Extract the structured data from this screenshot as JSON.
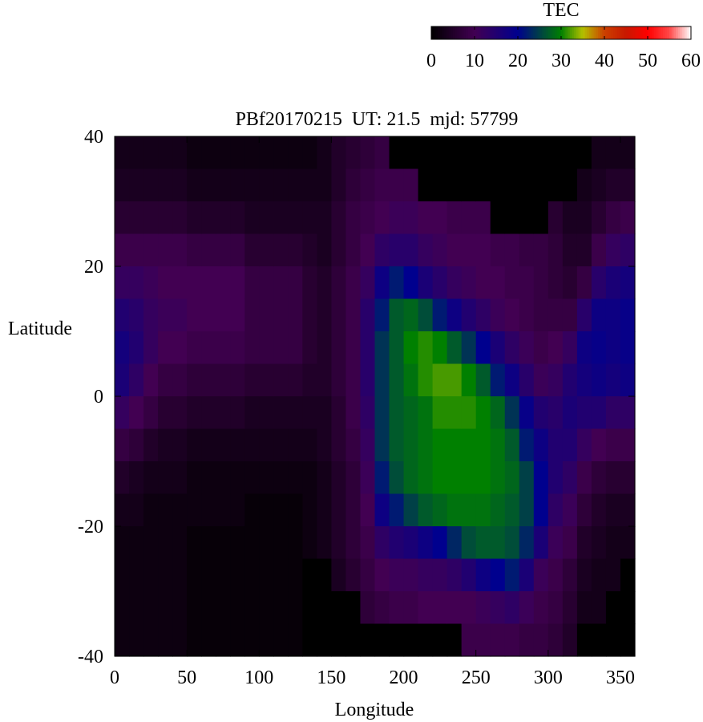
{
  "chart_data": {
    "type": "heatmap",
    "title": "PBf20170215  UT: 21.5  mjd: 57799",
    "xlabel": "Longitude",
    "ylabel": "Latitude",
    "xlim": [
      0,
      360
    ],
    "ylim": [
      -40,
      40
    ],
    "xticks": [
      "0",
      "50",
      "100",
      "150",
      "200",
      "250",
      "300",
      "350"
    ],
    "yticks": [
      "40",
      "20",
      "0",
      "-20",
      "-40"
    ],
    "grid": false,
    "colorbar": {
      "label": "TEC",
      "range": [
        0,
        60
      ],
      "ticks": [
        "0",
        "10",
        "20",
        "30",
        "40",
        "50",
        "60"
      ],
      "placement": "top-right",
      "colors": [
        [
          0,
          "#000000"
        ],
        [
          10,
          "#420052"
        ],
        [
          20,
          "#00008e"
        ],
        [
          30,
          "#008000"
        ],
        [
          35,
          "#b4c000"
        ],
        [
          40,
          "#cc4000"
        ],
        [
          45,
          "#c81800"
        ],
        [
          50,
          "#ff0000"
        ],
        [
          55,
          "#ff4848"
        ],
        [
          60,
          "#ffffff"
        ]
      ]
    },
    "lon_edges_step": 10,
    "lat_centers": [
      37.5,
      32.5,
      27.5,
      22.5,
      17.5,
      12.5,
      7.5,
      2.5,
      -2.5,
      -7.5,
      -12.5,
      -17.5,
      -22.5,
      -27.5,
      -32.5,
      -37.5
    ],
    "lon_centers": [
      5,
      15,
      25,
      35,
      45,
      55,
      65,
      75,
      85,
      95,
      105,
      115,
      125,
      135,
      145,
      155,
      165,
      175,
      185,
      195,
      205,
      215,
      225,
      235,
      245,
      255,
      265,
      275,
      285,
      295,
      305,
      315,
      325,
      335,
      345,
      355
    ],
    "values_by_lon": [
      [
        3,
        4,
        6,
        9,
        12,
        15,
        17,
        16,
        12,
        8,
        5,
        3,
        2,
        2,
        2,
        2
      ],
      [
        3,
        4,
        6,
        9,
        12,
        14,
        15,
        13,
        10,
        7,
        4,
        3,
        2,
        2,
        2,
        2
      ],
      [
        3,
        4,
        6,
        9,
        11,
        12,
        12,
        10,
        8,
        5,
        3,
        2,
        2,
        2,
        2,
        2
      ],
      [
        3,
        4,
        6,
        9,
        10,
        11,
        10,
        8,
        6,
        4,
        3,
        2,
        2,
        2,
        2,
        2
      ],
      [
        3,
        4,
        6,
        9,
        10,
        11,
        10,
        8,
        6,
        4,
        3,
        2,
        2,
        2,
        2,
        2
      ],
      [
        2,
        3,
        5,
        8,
        10,
        10,
        9,
        7,
        5,
        3,
        2,
        2,
        1,
        1,
        1,
        1
      ],
      [
        2,
        3,
        5,
        8,
        10,
        10,
        9,
        7,
        5,
        3,
        2,
        2,
        1,
        1,
        1,
        1
      ],
      [
        2,
        3,
        5,
        8,
        10,
        10,
        9,
        7,
        5,
        3,
        2,
        2,
        1,
        1,
        1,
        1
      ],
      [
        2,
        3,
        5,
        8,
        10,
        10,
        9,
        7,
        5,
        3,
        2,
        2,
        1,
        1,
        1,
        1
      ],
      [
        2,
        3,
        4,
        6,
        8,
        8,
        8,
        6,
        4,
        3,
        2,
        1,
        1,
        1,
        1,
        1
      ],
      [
        2,
        3,
        4,
        6,
        8,
        8,
        8,
        6,
        4,
        3,
        2,
        1,
        1,
        1,
        1,
        1
      ],
      [
        2,
        3,
        4,
        6,
        8,
        8,
        8,
        6,
        4,
        3,
        2,
        1,
        1,
        1,
        1,
        1
      ],
      [
        2,
        3,
        4,
        6,
        8,
        8,
        8,
        6,
        4,
        3,
        2,
        1,
        1,
        1,
        1,
        1
      ],
      [
        2,
        3,
        4,
        5,
        6,
        6,
        6,
        5,
        4,
        3,
        2,
        2,
        2,
        0,
        0,
        0
      ],
      [
        3,
        3,
        4,
        4,
        5,
        5,
        5,
        5,
        4,
        4,
        3,
        3,
        3,
        0,
        0,
        0
      ],
      [
        5,
        5,
        6,
        6,
        7,
        7,
        7,
        7,
        6,
        6,
        5,
        5,
        5,
        4,
        0,
        0
      ],
      [
        6,
        7,
        8,
        8,
        9,
        9,
        9,
        9,
        9,
        8,
        7,
        7,
        7,
        6,
        0,
        0
      ],
      [
        7,
        8,
        9,
        10,
        12,
        14,
        14,
        14,
        13,
        12,
        11,
        10,
        9,
        8,
        7,
        0
      ],
      [
        8,
        9,
        10,
        13,
        18,
        22,
        24,
        24,
        24,
        24,
        22,
        18,
        13,
        10,
        8,
        0
      ],
      [
        0,
        9,
        11,
        14,
        22,
        27,
        27,
        27,
        27,
        27,
        26,
        22,
        15,
        11,
        9,
        0
      ],
      [
        0,
        9,
        11,
        14,
        20,
        28,
        30,
        29,
        28,
        28,
        28,
        25,
        16,
        11,
        9,
        0
      ],
      [
        0,
        0,
        10,
        12,
        16,
        26,
        31,
        31,
        29,
        29,
        29,
        27,
        18,
        12,
        10,
        0
      ],
      [
        0,
        0,
        10,
        11,
        14,
        22,
        30,
        32,
        31,
        30,
        30,
        28,
        20,
        12,
        10,
        0
      ],
      [
        0,
        0,
        9,
        10,
        12,
        18,
        27,
        32,
        31,
        30,
        30,
        29,
        23,
        13,
        10,
        0
      ],
      [
        0,
        0,
        9,
        10,
        11,
        15,
        24,
        30,
        31,
        30,
        30,
        29,
        26,
        15,
        10,
        9
      ],
      [
        0,
        0,
        9,
        10,
        10,
        13,
        20,
        27,
        30,
        30,
        30,
        29,
        27,
        18,
        11,
        9
      ],
      [
        0,
        0,
        0,
        9,
        10,
        11,
        16,
        22,
        28,
        29,
        29,
        28,
        27,
        20,
        12,
        9
      ],
      [
        0,
        0,
        0,
        9,
        9,
        10,
        13,
        18,
        24,
        27,
        28,
        27,
        26,
        22,
        13,
        9
      ],
      [
        0,
        0,
        0,
        8,
        9,
        9,
        11,
        14,
        19,
        22,
        25,
        25,
        23,
        16,
        11,
        8
      ],
      [
        0,
        0,
        0,
        8,
        8,
        8,
        9,
        11,
        15,
        18,
        20,
        20,
        16,
        11,
        9,
        8
      ],
      [
        0,
        0,
        6,
        7,
        7,
        8,
        10,
        12,
        14,
        15,
        15,
        13,
        11,
        9,
        8,
        7
      ],
      [
        0,
        0,
        4,
        5,
        6,
        8,
        12,
        15,
        16,
        15,
        13,
        11,
        9,
        7,
        6,
        5
      ],
      [
        0,
        3,
        4,
        5,
        8,
        14,
        18,
        17,
        15,
        12,
        9,
        7,
        5,
        4,
        3,
        0
      ],
      [
        3,
        4,
        6,
        9,
        14,
        18,
        19,
        18,
        15,
        10,
        7,
        5,
        4,
        3,
        3,
        0
      ],
      [
        3,
        5,
        8,
        12,
        16,
        18,
        18,
        17,
        13,
        9,
        6,
        4,
        3,
        3,
        0,
        0
      ],
      [
        3,
        5,
        9,
        13,
        17,
        19,
        19,
        18,
        13,
        9,
        6,
        4,
        3,
        0,
        0,
        0
      ]
    ]
  }
}
